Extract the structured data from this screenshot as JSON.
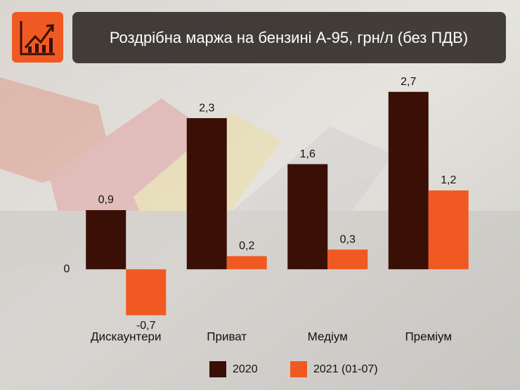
{
  "chart_data": {
    "type": "bar",
    "title": "Роздрібна маржа на бензині А-95, грн/л (без ПДВ)",
    "categories": [
      "Дискаунтери",
      "Приват",
      "Медіум",
      "Преміум"
    ],
    "series": [
      {
        "name": "2020",
        "color": "#3a0f05",
        "values": [
          0.9,
          2.3,
          1.6,
          2.7
        ],
        "value_labels": [
          "0,9",
          "2,3",
          "1,6",
          "2,7"
        ]
      },
      {
        "name": "2021 (01-07)",
        "color": "#f05a22",
        "values": [
          -0.7,
          0.2,
          0.3,
          1.2
        ],
        "value_labels": [
          "-0,7",
          "0,2",
          "0,3",
          "1,2"
        ]
      }
    ],
    "ylim": [
      -0.8,
      2.9
    ],
    "yticks": [
      0
    ],
    "grid": false
  }
}
